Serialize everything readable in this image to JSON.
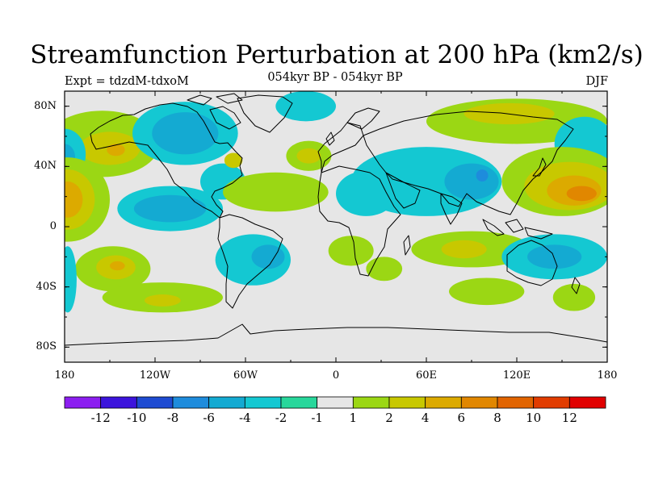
{
  "title": "Streamfunction Perturbation at 200 hPa (km2/s)",
  "left_label": "Expt = tdzdM-tdxoM",
  "center_label": "054kyr BP - 054kyr BP",
  "right_label": "DJF",
  "lat_ticks": [
    {
      "lat": 80,
      "label": "80N"
    },
    {
      "lat": 40,
      "label": "40N"
    },
    {
      "lat": 0,
      "label": "0"
    },
    {
      "lat": -40,
      "label": "40S"
    },
    {
      "lat": -80,
      "label": "80S"
    }
  ],
  "lon_ticks": [
    {
      "lon": -180,
      "label": "180"
    },
    {
      "lon": -120,
      "label": "120W"
    },
    {
      "lon": -60,
      "label": "60W"
    },
    {
      "lon": 0,
      "label": "0"
    },
    {
      "lon": 60,
      "label": "60E"
    },
    {
      "lon": 120,
      "label": "120E"
    },
    {
      "lon": 180,
      "label": "180"
    }
  ],
  "colorbar": {
    "colors": [
      "#8c1ef0",
      "#3c14dc",
      "#1e4bd2",
      "#1e8cdc",
      "#14aad2",
      "#14c8d2",
      "#28d79b",
      "#e6e6e6",
      "#9bd714",
      "#c8c800",
      "#dcaa00",
      "#e18700",
      "#e16400",
      "#e13c00",
      "#e10000"
    ],
    "labels": [
      "-12",
      "-10",
      "-8",
      "-6",
      "-4",
      "-2",
      "-1",
      "1",
      "2",
      "4",
      "6",
      "8",
      "10",
      "12"
    ]
  },
  "map": {
    "background": "#e6e6e6",
    "regions": [
      {
        "level": 2,
        "center": [
          -155,
          55
        ],
        "radius": [
          38,
          22
        ]
      },
      {
        "level": 4,
        "center": [
          -150,
          52
        ],
        "radius": [
          20,
          11
        ]
      },
      {
        "level": 6,
        "center": [
          -146,
          51
        ],
        "radius": [
          6,
          4
        ]
      },
      {
        "level": -2,
        "center": [
          -180,
          48
        ],
        "radius": [
          14,
          17
        ]
      },
      {
        "level": -4,
        "center": [
          -180,
          46
        ],
        "radius": [
          7,
          9
        ]
      },
      {
        "level": 2,
        "center": [
          -178,
          18
        ],
        "radius": [
          28,
          28
        ]
      },
      {
        "level": 4,
        "center": [
          -178,
          18
        ],
        "radius": [
          18,
          20
        ]
      },
      {
        "level": 6,
        "center": [
          -178,
          18
        ],
        "radius": [
          10,
          12
        ]
      },
      {
        "level": -2,
        "center": [
          -110,
          12
        ],
        "radius": [
          35,
          15
        ]
      },
      {
        "level": -4,
        "center": [
          -110,
          12
        ],
        "radius": [
          24,
          9
        ]
      },
      {
        "level": 2,
        "center": [
          -148,
          -28
        ],
        "radius": [
          25,
          15
        ]
      },
      {
        "level": 4,
        "center": [
          -146,
          -27
        ],
        "radius": [
          13,
          8
        ]
      },
      {
        "level": 6,
        "center": [
          -145,
          -26
        ],
        "radius": [
          5,
          3
        ]
      },
      {
        "level": 2,
        "center": [
          -115,
          -47
        ],
        "radius": [
          40,
          10
        ]
      },
      {
        "level": 4,
        "center": [
          -115,
          -49
        ],
        "radius": [
          12,
          4
        ]
      },
      {
        "level": -2,
        "center": [
          -178,
          -35
        ],
        "radius": [
          6,
          22
        ]
      },
      {
        "level": -2,
        "center": [
          -75,
          30
        ],
        "radius": [
          15,
          12
        ]
      },
      {
        "level": 2,
        "center": [
          -40,
          23
        ],
        "radius": [
          35,
          13
        ]
      },
      {
        "level": 4,
        "center": [
          -68,
          44
        ],
        "radius": [
          6,
          5
        ]
      },
      {
        "level": -2,
        "center": [
          -55,
          -22
        ],
        "radius": [
          25,
          17
        ]
      },
      {
        "level": -4,
        "center": [
          -45,
          -20
        ],
        "radius": [
          11,
          8
        ]
      },
      {
        "level": -2,
        "center": [
          -100,
          62
        ],
        "radius": [
          35,
          21
        ]
      },
      {
        "level": -4,
        "center": [
          -100,
          62
        ],
        "radius": [
          22,
          14
        ]
      },
      {
        "level": -2,
        "center": [
          -20,
          80
        ],
        "radius": [
          20,
          10
        ]
      },
      {
        "level": 2,
        "center": [
          -18,
          47
        ],
        "radius": [
          15,
          10
        ]
      },
      {
        "level": 4,
        "center": [
          -18,
          47
        ],
        "radius": [
          8,
          5
        ]
      },
      {
        "level": 2,
        "center": [
          10,
          -16
        ],
        "radius": [
          15,
          10
        ]
      },
      {
        "level": 2,
        "center": [
          32,
          -28
        ],
        "radius": [
          12,
          8
        ]
      },
      {
        "level": 2,
        "center": [
          120,
          70
        ],
        "radius": [
          60,
          15
        ]
      },
      {
        "level": 4,
        "center": [
          115,
          75
        ],
        "radius": [
          30,
          7
        ]
      },
      {
        "level": -2,
        "center": [
          60,
          30
        ],
        "radius": [
          50,
          23
        ]
      },
      {
        "level": -4,
        "center": [
          90,
          30
        ],
        "radius": [
          18,
          12
        ]
      },
      {
        "level": -6,
        "center": [
          97,
          34
        ],
        "radius": [
          4,
          4
        ]
      },
      {
        "level": -2,
        "center": [
          20,
          22
        ],
        "radius": [
          20,
          15
        ]
      },
      {
        "level": -2,
        "center": [
          165,
          55
        ],
        "radius": [
          20,
          18
        ]
      },
      {
        "level": 2,
        "center": [
          150,
          30
        ],
        "radius": [
          40,
          23
        ]
      },
      {
        "level": 4,
        "center": [
          155,
          27
        ],
        "radius": [
          30,
          16
        ]
      },
      {
        "level": 6,
        "center": [
          158,
          24
        ],
        "radius": [
          18,
          10
        ]
      },
      {
        "level": 8,
        "center": [
          163,
          22
        ],
        "radius": [
          10,
          5
        ]
      },
      {
        "level": 2,
        "center": [
          90,
          -15
        ],
        "radius": [
          40,
          12
        ]
      },
      {
        "level": 4,
        "center": [
          85,
          -15
        ],
        "radius": [
          15,
          6
        ]
      },
      {
        "level": -2,
        "center": [
          145,
          -20
        ],
        "radius": [
          35,
          15
        ]
      },
      {
        "level": -4,
        "center": [
          145,
          -20
        ],
        "radius": [
          18,
          8
        ]
      },
      {
        "level": 2,
        "center": [
          100,
          -43
        ],
        "radius": [
          25,
          9
        ]
      },
      {
        "level": 2,
        "center": [
          158,
          -47
        ],
        "radius": [
          14,
          9
        ]
      }
    ]
  }
}
